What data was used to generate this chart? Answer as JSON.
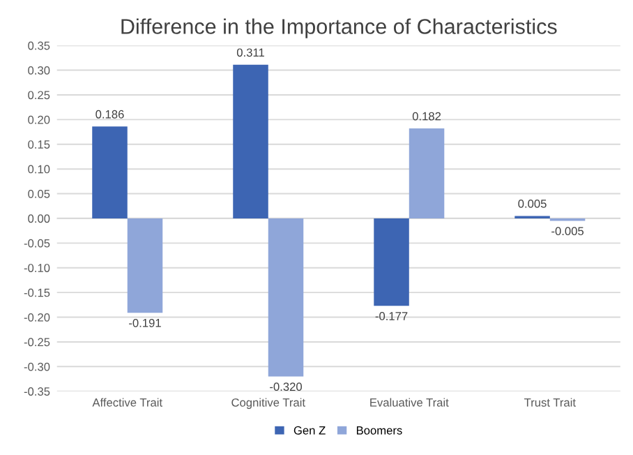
{
  "chart_data": {
    "type": "bar",
    "title": "Difference in the Importance of Characteristics",
    "categories": [
      "Affective Trait",
      "Cognitive Trait",
      "Evaluative Trait",
      "Trust Trait"
    ],
    "series": [
      {
        "name": "Gen Z",
        "color": "#3d65b3",
        "values": [
          0.186,
          0.311,
          -0.177,
          0.005
        ],
        "value_labels": [
          "0.186",
          "0.311",
          "-0.177",
          "0.005"
        ]
      },
      {
        "name": "Boomers",
        "color": "#8fa6d9",
        "values": [
          -0.191,
          -0.32,
          0.182,
          -0.005
        ],
        "value_labels": [
          "-0.191",
          "-0.320",
          "0.182",
          "-0.005"
        ]
      }
    ],
    "ylim": [
      -0.35,
      0.35
    ],
    "yticks": [
      {
        "value": -0.35,
        "label": "-0.35"
      },
      {
        "value": -0.3,
        "label": "-0.30"
      },
      {
        "value": -0.25,
        "label": "-0.25"
      },
      {
        "value": -0.2,
        "label": "-0.20"
      },
      {
        "value": -0.15,
        "label": "-0.15"
      },
      {
        "value": -0.1,
        "label": "-0.10"
      },
      {
        "value": -0.05,
        "label": "-0.05"
      },
      {
        "value": 0,
        "label": "0.00"
      },
      {
        "value": 0.05,
        "label": "0.05"
      },
      {
        "value": 0.1,
        "label": "0.10"
      },
      {
        "value": 0.15,
        "label": "0.15"
      },
      {
        "value": 0.2,
        "label": "0.20"
      },
      {
        "value": 0.25,
        "label": "0.25"
      },
      {
        "value": 0.3,
        "label": "0.30"
      },
      {
        "value": 0.35,
        "label": "0.35"
      }
    ],
    "grid": "y",
    "legend": "bottom"
  }
}
